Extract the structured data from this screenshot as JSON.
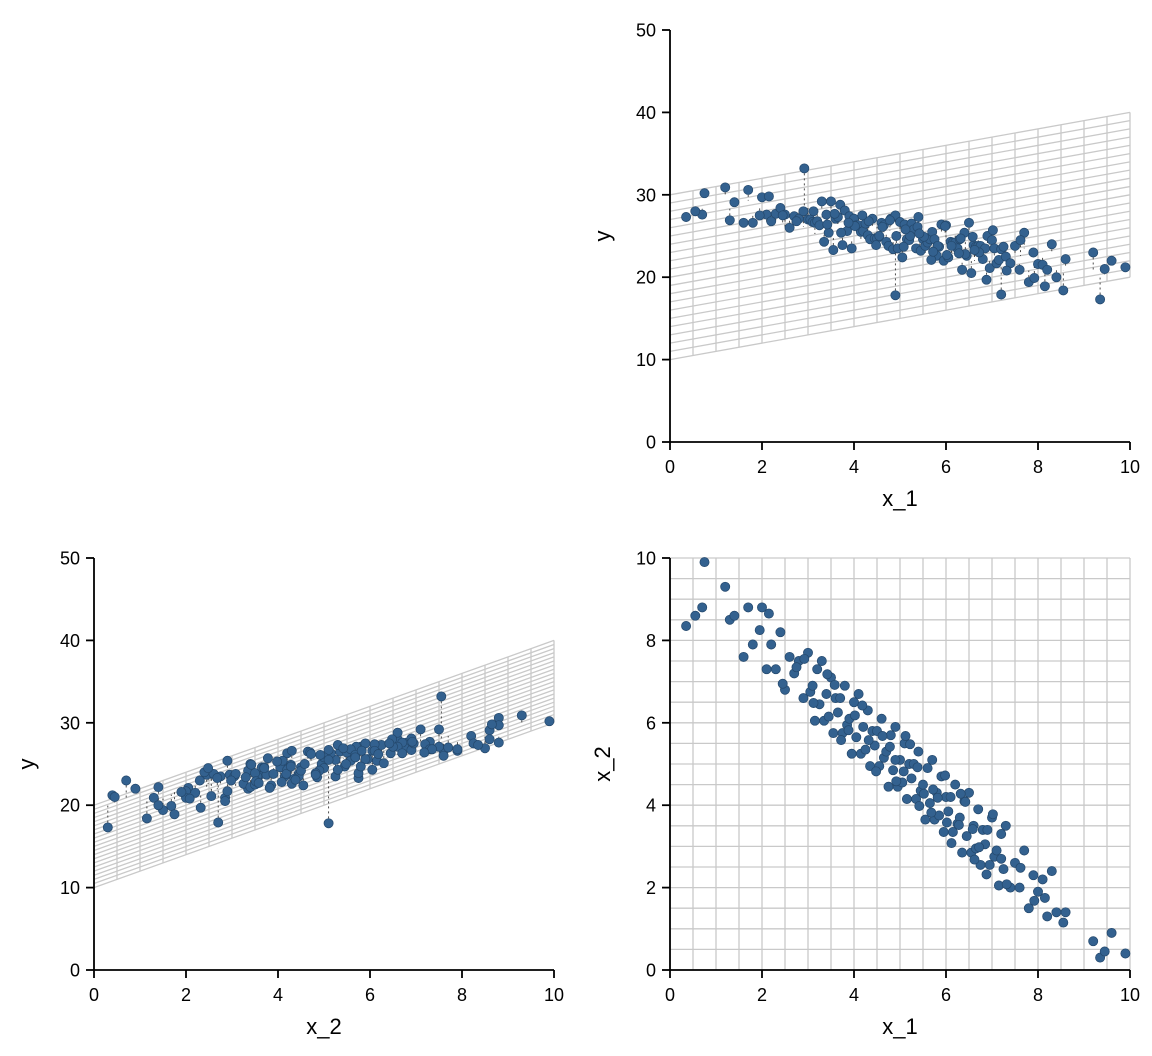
{
  "chart_data": {
    "figure": "pairwise-projections-of-fitted-plane",
    "point_color": "#33618F",
    "point_edge_color": "#24486C",
    "mesh_color": "#c9c9c9",
    "axis_color": "#000000",
    "residual_color": "#1a1a1a",
    "plane": {
      "intercept": 10,
      "coef_x1": 1,
      "coef_x2": 2,
      "mesh_step": 0.5
    },
    "panels": [
      {
        "id": "y_vs_x1",
        "type": "scatter",
        "position": "top-right",
        "x_field": "x1",
        "y_field": "y",
        "xlabel": "x_1",
        "ylabel": "y",
        "xlim": [
          0,
          10
        ],
        "ylim": [
          0,
          50
        ],
        "xticks": [
          0,
          2,
          4,
          6,
          8,
          10
        ],
        "yticks": [
          0,
          10,
          20,
          30,
          40,
          50
        ],
        "mesh": "plane-band",
        "residuals": true
      },
      {
        "id": "y_vs_x2",
        "type": "scatter",
        "position": "bottom-left",
        "x_field": "x2",
        "y_field": "y",
        "xlabel": "x_2",
        "ylabel": "y",
        "xlim": [
          0,
          10
        ],
        "ylim": [
          0,
          50
        ],
        "xticks": [
          0,
          2,
          4,
          6,
          8,
          10
        ],
        "yticks": [
          0,
          10,
          20,
          30,
          40,
          50
        ],
        "mesh": "plane-band",
        "residuals": true
      },
      {
        "id": "x2_vs_x1",
        "type": "scatter",
        "position": "bottom-right",
        "x_field": "x1",
        "y_field": "x2",
        "xlabel": "x_1",
        "ylabel": "x_2",
        "xlim": [
          0,
          10
        ],
        "ylim": [
          0,
          10
        ],
        "xticks": [
          0,
          2,
          4,
          6,
          8,
          10
        ],
        "yticks": [
          0,
          2,
          4,
          6,
          8,
          10
        ],
        "mesh": "domain-grid",
        "residuals": false
      }
    ],
    "columns": [
      "x1",
      "x2",
      "y"
    ],
    "points": [
      [
        0.75,
        9.9,
        30.2
      ],
      [
        0.7,
        8.8,
        27.6
      ],
      [
        1.2,
        9.3,
        30.9
      ],
      [
        1.3,
        8.5,
        26.9
      ],
      [
        1.4,
        8.6,
        29.1
      ],
      [
        1.6,
        7.6,
        26.6
      ],
      [
        1.7,
        8.8,
        30.6
      ],
      [
        1.8,
        7.9,
        26.6
      ],
      [
        2.0,
        8.8,
        29.7
      ],
      [
        2.1,
        7.3,
        27.6
      ],
      [
        2.2,
        7.9,
        26.8
      ],
      [
        2.3,
        7.3,
        27.7
      ],
      [
        2.4,
        8.2,
        28.4
      ],
      [
        2.5,
        6.8,
        27.6
      ],
      [
        2.6,
        7.6,
        26.0
      ],
      [
        2.7,
        7.2,
        27.4
      ],
      [
        2.8,
        7.5,
        27.1
      ],
      [
        2.9,
        6.6,
        28.0
      ],
      [
        3.0,
        7.7,
        27.0
      ],
      [
        3.05,
        6.75,
        27.0
      ],
      [
        3.1,
        6.9,
        26.7
      ],
      [
        3.15,
        6.05,
        26.6
      ],
      [
        3.2,
        7.3,
        26.8
      ],
      [
        3.25,
        6.45,
        26.3
      ],
      [
        3.3,
        7.5,
        29.2
      ],
      [
        3.35,
        6.05,
        24.3
      ],
      [
        3.4,
        6.7,
        27.6
      ],
      [
        3.45,
        6.15,
        25.4
      ],
      [
        3.5,
        7.1,
        29.2
      ],
      [
        3.55,
        5.75,
        23.3
      ],
      [
        3.6,
        6.6,
        27.1
      ],
      [
        3.65,
        6.25,
        27.3
      ],
      [
        3.7,
        6.6,
        28.8
      ],
      [
        3.75,
        5.75,
        23.9
      ],
      [
        3.8,
        6.9,
        28.1
      ],
      [
        3.85,
        5.95,
        25.6
      ],
      [
        3.9,
        6.1,
        27.4
      ],
      [
        3.95,
        5.25,
        23.5
      ],
      [
        4.0,
        6.5,
        27.1
      ],
      [
        4.05,
        5.65,
        26.3
      ],
      [
        4.1,
        6.7,
        26.3
      ],
      [
        4.15,
        5.25,
        25.5
      ],
      [
        4.2,
        5.9,
        25.6
      ],
      [
        4.25,
        5.35,
        26.5
      ],
      [
        4.3,
        6.3,
        25.1
      ],
      [
        4.35,
        4.95,
        24.6
      ],
      [
        4.4,
        5.8,
        27.1
      ],
      [
        4.45,
        5.45,
        24.7
      ],
      [
        4.5,
        5.8,
        24.7
      ],
      [
        4.55,
        4.95,
        25.0
      ],
      [
        4.6,
        6.1,
        26.6
      ],
      [
        4.65,
        5.15,
        26.3
      ],
      [
        4.7,
        5.3,
        24.3
      ],
      [
        4.75,
        4.45,
        23.8
      ],
      [
        4.8,
        5.7,
        27.1
      ],
      [
        4.85,
        4.85,
        23.4
      ],
      [
        4.9,
        5.9,
        27.5
      ],
      [
        4.95,
        4.45,
        23.5
      ],
      [
        5.0,
        5.1,
        26.7
      ],
      [
        5.05,
        4.55,
        22.4
      ],
      [
        5.1,
        5.5,
        26.4
      ],
      [
        5.15,
        4.15,
        24.6
      ],
      [
        5.2,
        5.0,
        24.5
      ],
      [
        5.25,
        4.65,
        26.5
      ],
      [
        5.3,
        5.0,
        25.8
      ],
      [
        5.35,
        4.15,
        23.5
      ],
      [
        5.4,
        5.3,
        27.3
      ],
      [
        5.45,
        4.35,
        23.2
      ],
      [
        5.5,
        4.5,
        24.6
      ],
      [
        5.55,
        3.65,
        23.8
      ],
      [
        5.6,
        4.9,
        24.2
      ],
      [
        5.65,
        4.05,
        24.6
      ],
      [
        5.7,
        5.1,
        25.5
      ],
      [
        5.75,
        3.65,
        24.6
      ],
      [
        5.8,
        4.3,
        22.6
      ],
      [
        5.85,
        3.75,
        23.7
      ],
      [
        5.9,
        4.7,
        26.4
      ],
      [
        5.95,
        3.35,
        22.0
      ],
      [
        6.0,
        4.2,
        26.3
      ],
      [
        6.05,
        3.85,
        22.4
      ],
      [
        6.1,
        4.2,
        24.3
      ],
      [
        6.15,
        3.35,
        24.2
      ],
      [
        6.2,
        4.5,
        24.2
      ],
      [
        6.25,
        3.55,
        23.5
      ],
      [
        6.3,
        3.7,
        24.6
      ],
      [
        6.35,
        2.85,
        20.9
      ],
      [
        6.4,
        4.1,
        25.4
      ],
      [
        6.45,
        3.25,
        22.6
      ],
      [
        6.5,
        4.3,
        26.6
      ],
      [
        6.55,
        2.85,
        20.5
      ],
      [
        6.6,
        3.5,
        23.9
      ],
      [
        6.65,
        2.95,
        23.7
      ],
      [
        6.7,
        3.9,
        23.8
      ],
      [
        6.75,
        2.55,
        23.8
      ],
      [
        6.8,
        3.4,
        22.2
      ],
      [
        6.85,
        3.05,
        23.5
      ],
      [
        6.9,
        3.4,
        25.0
      ],
      [
        6.95,
        2.55,
        21.1
      ],
      [
        7.0,
        3.7,
        24.5
      ],
      [
        7.05,
        2.75,
        23.5
      ],
      [
        7.1,
        2.9,
        21.7
      ],
      [
        7.15,
        2.05,
        22.1
      ],
      [
        7.2,
        3.3,
        23.4
      ],
      [
        7.25,
        2.45,
        23.7
      ],
      [
        7.3,
        3.5,
        22.5
      ],
      [
        7.4,
        2.0,
        21.7
      ],
      [
        7.5,
        2.6,
        23.8
      ],
      [
        7.6,
        2.0,
        20.9
      ],
      [
        7.7,
        2.9,
        25.4
      ],
      [
        7.8,
        1.5,
        19.4
      ],
      [
        7.9,
        2.3,
        23.0
      ],
      [
        8.0,
        1.9,
        21.6
      ],
      [
        8.1,
        2.2,
        21.5
      ],
      [
        8.2,
        1.3,
        20.9
      ],
      [
        8.3,
        2.4,
        24.0
      ],
      [
        8.4,
        1.4,
        20.0
      ],
      [
        8.6,
        1.4,
        22.2
      ],
      [
        9.35,
        0.3,
        17.3
      ],
      [
        9.6,
        0.9,
        22.0
      ],
      [
        9.9,
        0.4,
        21.2
      ],
      [
        2.15,
        8.65,
        29.8
      ],
      [
        2.45,
        6.95,
        27.5
      ],
      [
        2.75,
        7.35,
        26.8
      ],
      [
        3.12,
        6.48,
        28.0
      ],
      [
        3.42,
        7.18,
        26.4
      ],
      [
        3.72,
        5.58,
        25.4
      ],
      [
        4.02,
        6.18,
        26.2
      ],
      [
        4.32,
        5.58,
        26.8
      ],
      [
        4.62,
        5.68,
        26.1
      ],
      [
        4.92,
        4.58,
        25.0
      ],
      [
        5.22,
        5.48,
        25.0
      ],
      [
        5.52,
        4.28,
        24.9
      ],
      [
        5.82,
        4.18,
        23.8
      ],
      [
        6.12,
        3.08,
        23.8
      ],
      [
        6.42,
        4.08,
        22.8
      ],
      [
        6.72,
        2.98,
        23.0
      ],
      [
        7.02,
        3.78,
        25.7
      ],
      [
        7.32,
        2.08,
        20.8
      ],
      [
        7.62,
        2.48,
        24.5
      ],
      [
        7.92,
        1.68,
        19.9
      ],
      [
        4.18,
        6.42,
        27.5
      ],
      [
        4.48,
        4.82,
        23.9
      ],
      [
        4.78,
        5.42,
        26.9
      ],
      [
        5.08,
        4.82,
        23.7
      ],
      [
        5.38,
        4.92,
        26.1
      ],
      [
        5.68,
        3.82,
        22.1
      ],
      [
        5.98,
        4.72,
        26.2
      ],
      [
        6.28,
        3.52,
        22.9
      ],
      [
        6.58,
        3.42,
        24.9
      ],
      [
        6.88,
        2.32,
        19.7
      ],
      [
        3.58,
        6.92,
        27.7
      ],
      [
        3.88,
        5.82,
        26.6
      ],
      [
        5.12,
        5.68,
        25.8
      ],
      [
        5.42,
        3.98,
        25.3
      ],
      [
        5.72,
        4.38,
        23.1
      ],
      [
        6.02,
        3.58,
        22.7
      ],
      [
        6.32,
        4.28,
        24.7
      ],
      [
        6.62,
        2.68,
        23.3
      ],
      [
        1.95,
        8.25,
        27.5
      ],
      [
        9.45,
        0.45,
        21.0
      ],
      [
        2.92,
        7.55,
        33.2
      ],
      [
        4.9,
        5.1,
        17.8
      ],
      [
        7.2,
        2.7,
        17.9
      ],
      [
        8.15,
        1.75,
        18.9
      ],
      [
        0.35,
        8.35,
        27.3
      ],
      [
        0.55,
        8.6,
        28.0
      ],
      [
        9.2,
        0.7,
        23.0
      ],
      [
        8.55,
        1.15,
        18.4
      ]
    ]
  }
}
